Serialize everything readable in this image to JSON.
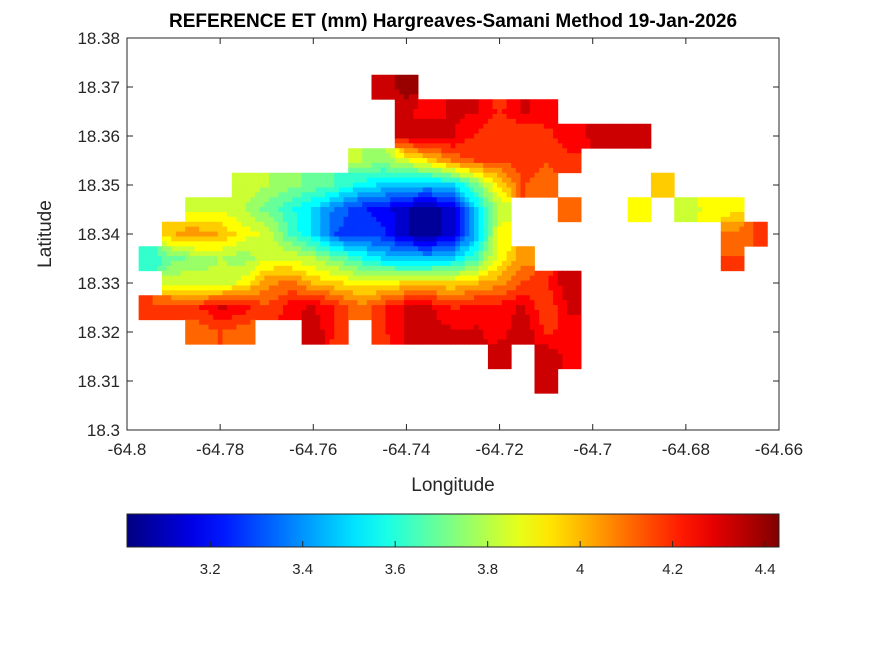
{
  "chart_data": {
    "type": "heatmap",
    "title": "REFERENCE ET (mm) Hargreaves-Samani Method  19-Jan-2026",
    "xlabel": "Longitude",
    "ylabel": "Latitude",
    "xlim": [
      -64.8,
      -64.66
    ],
    "ylim": [
      18.3,
      18.38
    ],
    "xticks": [
      -64.8,
      -64.78,
      -64.76,
      -64.74,
      -64.72,
      -64.7,
      -64.68,
      -64.66
    ],
    "xtick_labels": [
      "-64.8",
      "-64.78",
      "-64.76",
      "-64.74",
      "-64.72",
      "-64.7",
      "-64.68",
      "-64.66"
    ],
    "yticks": [
      18.3,
      18.31,
      18.32,
      18.33,
      18.34,
      18.35,
      18.36,
      18.37,
      18.38
    ],
    "ytick_labels": [
      "18.3",
      "18.31",
      "18.32",
      "18.33",
      "18.34",
      "18.35",
      "18.36",
      "18.37",
      "18.38"
    ],
    "colormap": "jet",
    "clim": [
      3.02,
      4.43
    ],
    "colorbar": {
      "location": "bottom",
      "ticks": [
        3.2,
        3.4,
        3.6,
        3.8,
        4,
        4.2,
        4.4
      ],
      "tick_labels": [
        "3.2",
        "3.4",
        "3.6",
        "3.8",
        "4",
        "4.2",
        "4.4"
      ]
    },
    "grid": false,
    "lon": [
      -64.795,
      -64.79,
      -64.785,
      -64.78,
      -64.775,
      -64.77,
      -64.765,
      -64.76,
      -64.755,
      -64.75,
      -64.745,
      -64.74,
      -64.735,
      -64.73,
      -64.725,
      -64.72,
      -64.715,
      -64.71,
      -64.705,
      -64.7,
      -64.695,
      -64.69,
      -64.685,
      -64.68,
      -64.675,
      -64.67,
      -64.665
    ],
    "lat": [
      18.37,
      18.365,
      18.36,
      18.355,
      18.35,
      18.345,
      18.34,
      18.335,
      18.33,
      18.325,
      18.32,
      18.315,
      18.31
    ],
    "values": [
      [
        null,
        null,
        null,
        null,
        null,
        null,
        null,
        null,
        null,
        null,
        4.3,
        4.4,
        null,
        null,
        null,
        null,
        null,
        null,
        null,
        null,
        null,
        null,
        null,
        null,
        null,
        null,
        null
      ],
      [
        null,
        null,
        null,
        null,
        null,
        null,
        null,
        null,
        null,
        null,
        null,
        4.3,
        4.25,
        4.3,
        4.3,
        4.2,
        4.3,
        4.25,
        null,
        null,
        null,
        null,
        null,
        null,
        null,
        null,
        null
      ],
      [
        null,
        null,
        null,
        null,
        null,
        null,
        null,
        null,
        null,
        null,
        null,
        4.3,
        4.35,
        4.3,
        4.2,
        4.15,
        4.15,
        4.2,
        4.25,
        4.3,
        4.3,
        4.3,
        null,
        null,
        null,
        null,
        null
      ],
      [
        null,
        null,
        null,
        null,
        null,
        null,
        null,
        null,
        null,
        3.8,
        3.75,
        3.85,
        3.95,
        4.1,
        4.15,
        4.15,
        4.2,
        4.15,
        4.2,
        null,
        null,
        null,
        null,
        null,
        null,
        null,
        null
      ],
      [
        null,
        null,
        null,
        null,
        3.85,
        3.8,
        3.75,
        3.7,
        3.65,
        3.55,
        3.5,
        3.45,
        3.45,
        3.5,
        3.7,
        3.95,
        4.15,
        4.1,
        null,
        null,
        null,
        null,
        4.0,
        null,
        null,
        null,
        null
      ],
      [
        null,
        null,
        3.85,
        3.85,
        3.8,
        3.7,
        3.6,
        3.5,
        3.35,
        3.25,
        3.2,
        3.1,
        3.05,
        3.15,
        3.5,
        3.8,
        null,
        null,
        4.1,
        null,
        null,
        3.9,
        null,
        3.8,
        3.9,
        3.9,
        null
      ],
      [
        null,
        4.0,
        4.05,
        4.0,
        3.9,
        3.85,
        3.65,
        3.5,
        3.3,
        3.25,
        3.25,
        3.1,
        3.05,
        3.15,
        3.45,
        3.9,
        null,
        null,
        null,
        null,
        null,
        null,
        null,
        null,
        null,
        4.1,
        4.15
      ],
      [
        3.6,
        3.7,
        3.75,
        3.8,
        3.75,
        3.85,
        3.85,
        3.8,
        3.7,
        3.6,
        3.5,
        3.45,
        3.45,
        3.5,
        3.65,
        3.9,
        4.05,
        null,
        null,
        null,
        null,
        null,
        null,
        null,
        null,
        4.15,
        null
      ],
      [
        null,
        3.85,
        3.85,
        3.8,
        3.9,
        4.05,
        4.1,
        4.0,
        3.95,
        3.9,
        3.9,
        3.95,
        3.95,
        3.95,
        4.0,
        4.05,
        4.15,
        4.2,
        4.35,
        null,
        null,
        null,
        null,
        null,
        null,
        null,
        null
      ],
      [
        4.15,
        4.2,
        4.2,
        4.3,
        4.25,
        4.15,
        4.25,
        4.3,
        4.2,
        4.1,
        4.2,
        4.3,
        4.3,
        4.2,
        4.25,
        4.25,
        4.3,
        4.15,
        4.3,
        null,
        null,
        null,
        null,
        null,
        null,
        null,
        null
      ],
      [
        null,
        null,
        4.1,
        4.15,
        4.1,
        null,
        null,
        4.35,
        4.2,
        null,
        4.2,
        4.3,
        4.35,
        4.3,
        4.3,
        4.25,
        4.35,
        4.2,
        4.25,
        null,
        null,
        null,
        null,
        null,
        null,
        null,
        null
      ],
      [
        null,
        null,
        null,
        null,
        null,
        null,
        null,
        null,
        null,
        null,
        null,
        null,
        null,
        null,
        null,
        4.35,
        null,
        4.35,
        4.25,
        null,
        null,
        null,
        null,
        null,
        null,
        null,
        null
      ],
      [
        null,
        null,
        null,
        null,
        null,
        null,
        null,
        null,
        null,
        null,
        null,
        null,
        null,
        null,
        null,
        null,
        null,
        4.35,
        null,
        null,
        null,
        null,
        null,
        null,
        null,
        null,
        null
      ]
    ]
  }
}
